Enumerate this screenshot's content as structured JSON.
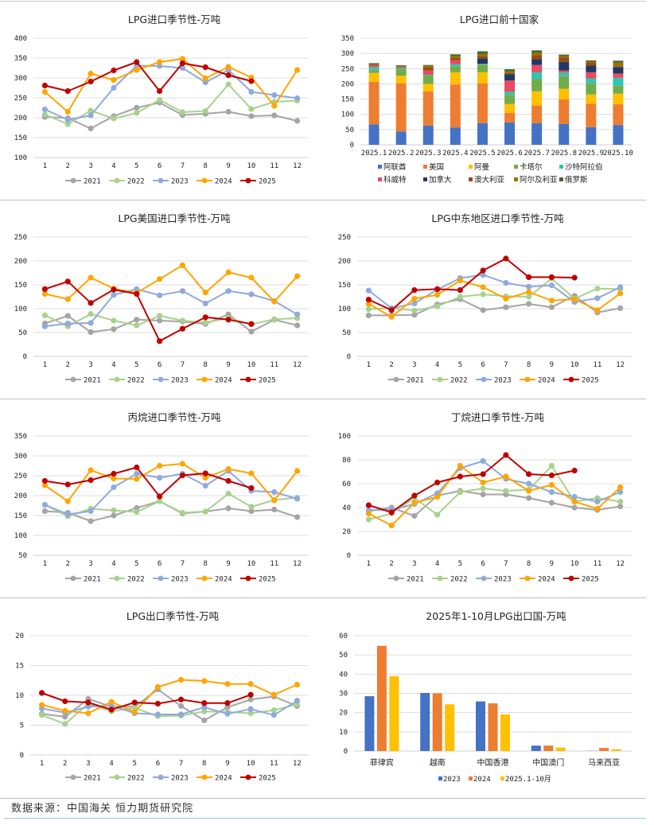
{
  "footer": {
    "source": "数据来源：中国海关 恒力期货研究院"
  },
  "colors": {
    "2021": "#a5a5a5",
    "2022": "#a9d18e",
    "2023": "#8faadc",
    "2024": "#ffa500",
    "2025": "#c00000"
  },
  "chart_data": [
    {
      "id": "lpg-import-seasonal",
      "type": "line",
      "title": "LPG进口季节性-万吨",
      "categories": [
        "1",
        "2",
        "3",
        "4",
        "5",
        "6",
        "7",
        "8",
        "9",
        "10",
        "11",
        "12"
      ],
      "ylim": [
        100,
        400
      ],
      "yticks": [
        100,
        150,
        200,
        250,
        300,
        350,
        400
      ],
      "legend": "bottom",
      "series": [
        {
          "name": "2021",
          "values": [
            202,
            199,
            173,
            204,
            225,
            238,
            207,
            210,
            215,
            204,
            206,
            192
          ]
        },
        {
          "name": "2022",
          "values": [
            208,
            184,
            218,
            198,
            212,
            245,
            214,
            217,
            284,
            222,
            240,
            243
          ]
        },
        {
          "name": "2023",
          "values": [
            221,
            195,
            206,
            275,
            331,
            330,
            325,
            289,
            320,
            265,
            257,
            249
          ]
        },
        {
          "name": "2024",
          "values": [
            265,
            215,
            311,
            295,
            320,
            340,
            348,
            299,
            328,
            301,
            230,
            320
          ]
        },
        {
          "name": "2025",
          "values": [
            281,
            267,
            291,
            319,
            340,
            267,
            337,
            327,
            307,
            292,
            null,
            null
          ]
        }
      ]
    },
    {
      "id": "lpg-import-top10",
      "type": "bar",
      "stacked": true,
      "title": "LPG进口前十国家",
      "categories": [
        "2025.1",
        "2025.2",
        "2025.3",
        "2025.4",
        "2025.5",
        "2025.6",
        "2025.7",
        "2025.8",
        "2025.9",
        "2025.10"
      ],
      "ylim": [
        0,
        350
      ],
      "yticks": [
        0,
        50,
        100,
        150,
        200,
        250,
        300,
        350
      ],
      "legend": "bottom",
      "series": [
        {
          "name": "阿联酋",
          "color": "#4472c4",
          "values": [
            67,
            44,
            63,
            57,
            71,
            73,
            71,
            68,
            58,
            65
          ]
        },
        {
          "name": "美国",
          "color": "#ed7d31",
          "values": [
            140,
            158,
            112,
            141,
            131,
            32,
            58,
            81,
            77,
            68
          ]
        },
        {
          "name": "阿曼",
          "color": "#ffc000",
          "values": [
            29,
            25,
            25,
            40,
            36,
            29,
            47,
            35,
            30,
            35
          ]
        },
        {
          "name": "卡塔尔",
          "color": "#70ad47",
          "values": [
            10,
            22,
            27,
            20,
            25,
            30,
            41,
            41,
            37,
            26
          ]
        },
        {
          "name": "沙特阿拉伯",
          "color": "#2ec4b6",
          "values": [
            9,
            3,
            3,
            7,
            2,
            10,
            21,
            12,
            16,
            26
          ]
        },
        {
          "name": "科威特",
          "color": "#e84a5f",
          "values": [
            5,
            3,
            14,
            13,
            1,
            37,
            24,
            7,
            20,
            14
          ]
        },
        {
          "name": "加拿大",
          "color": "#203864",
          "values": [
            0,
            0,
            0,
            0,
            18,
            21,
            19,
            28,
            22,
            21
          ]
        },
        {
          "name": "澳大利亚",
          "color": "#9e480e",
          "values": [
            3,
            2,
            11,
            7,
            7,
            4,
            13,
            15,
            9,
            3
          ]
        },
        {
          "name": "阿尔及利亚",
          "color": "#997300",
          "values": [
            2,
            1,
            4,
            6,
            7,
            5,
            8,
            4,
            4,
            12
          ]
        },
        {
          "name": "俄罗斯",
          "color": "#43682b",
          "values": [
            3,
            3,
            3,
            6,
            9,
            7,
            8,
            5,
            4,
            6
          ]
        }
      ]
    },
    {
      "id": "lpg-us-import-seasonal",
      "type": "line",
      "title": "LPG美国进口季节性-万吨",
      "categories": [
        "1",
        "2",
        "3",
        "4",
        "5",
        "6",
        "7",
        "8",
        "9",
        "10",
        "11",
        "12"
      ],
      "ylim": [
        0,
        250
      ],
      "yticks": [
        0,
        50,
        100,
        150,
        200,
        250
      ],
      "legend": "bottom",
      "series": [
        {
          "name": "2021",
          "values": [
            69,
            85,
            51,
            57,
            77,
            75,
            73,
            68,
            88,
            52,
            77,
            65
          ]
        },
        {
          "name": "2022",
          "values": [
            86,
            63,
            89,
            75,
            65,
            85,
            75,
            71,
            80,
            67,
            78,
            80
          ]
        },
        {
          "name": "2023",
          "values": [
            63,
            69,
            70,
            129,
            141,
            128,
            137,
            111,
            137,
            130,
            116,
            88
          ]
        },
        {
          "name": "2024",
          "values": [
            131,
            120,
            165,
            142,
            133,
            162,
            191,
            134,
            176,
            165,
            115,
            168
          ]
        },
        {
          "name": "2025",
          "values": [
            141,
            157,
            112,
            140,
            131,
            32,
            58,
            82,
            77,
            68,
            null,
            null
          ]
        }
      ]
    },
    {
      "id": "lpg-middle-east-import-seasonal",
      "type": "line",
      "title": "LPG中东地区进口季节性-万吨",
      "categories": [
        "1",
        "2",
        "3",
        "4",
        "5",
        "6",
        "7",
        "8",
        "9",
        "10",
        "11",
        "12"
      ],
      "ylim": [
        0,
        250
      ],
      "yticks": [
        0,
        50,
        100,
        150,
        200,
        250
      ],
      "legend": "bottom",
      "series": [
        {
          "name": "2021",
          "values": [
            86,
            86,
            87,
            109,
            120,
            97,
            103,
            110,
            103,
            127,
            92,
            101
          ]
        },
        {
          "name": "2022",
          "values": [
            99,
            101,
            96,
            105,
            125,
            130,
            126,
            125,
            163,
            121,
            142,
            141
          ]
        },
        {
          "name": "2023",
          "values": [
            138,
            101,
            111,
            140,
            164,
            171,
            154,
            146,
            149,
            114,
            122,
            145
          ]
        },
        {
          "name": "2024",
          "values": [
            110,
            83,
            121,
            129,
            159,
            145,
            121,
            135,
            117,
            120,
            97,
            132
          ]
        },
        {
          "name": "2025",
          "values": [
            119,
            97,
            139,
            141,
            139,
            180,
            205,
            166,
            166,
            165,
            null,
            null
          ]
        }
      ]
    },
    {
      "id": "propane-import-seasonal",
      "type": "line",
      "title": "丙烷进口季节性-万吨",
      "categories": [
        "1",
        "2",
        "3",
        "4",
        "5",
        "6",
        "7",
        "8",
        "9",
        "10",
        "11",
        "12"
      ],
      "ylim": [
        50,
        350
      ],
      "yticks": [
        50,
        100,
        150,
        200,
        250,
        300,
        350
      ],
      "legend": "bottom",
      "series": [
        {
          "name": "2021",
          "values": [
            161,
            157,
            136,
            150,
            169,
            186,
            155,
            160,
            168,
            161,
            165,
            146
          ]
        },
        {
          "name": "2022",
          "values": [
            177,
            148,
            167,
            163,
            159,
            186,
            157,
            160,
            205,
            172,
            189,
            195
          ]
        },
        {
          "name": "2023",
          "values": [
            177,
            153,
            161,
            221,
            255,
            245,
            255,
            225,
            262,
            212,
            209,
            192
          ]
        },
        {
          "name": "2024",
          "values": [
            226,
            186,
            264,
            243,
            242,
            275,
            280,
            245,
            267,
            256,
            188,
            262
          ]
        },
        {
          "name": "2025",
          "values": [
            237,
            228,
            239,
            255,
            271,
            198,
            251,
            256,
            237,
            219,
            null,
            null
          ]
        }
      ]
    },
    {
      "id": "butane-import-seasonal",
      "type": "line",
      "title": "丁烷进口季节性-万吨",
      "categories": [
        "1",
        "2",
        "3",
        "4",
        "5",
        "6",
        "7",
        "8",
        "9",
        "10",
        "11",
        "12"
      ],
      "ylim": [
        0,
        100
      ],
      "yticks": [
        0,
        20,
        40,
        60,
        80,
        100
      ],
      "legend": "bottom",
      "series": [
        {
          "name": "2021",
          "values": [
            37,
            40,
            33,
            50,
            54,
            51,
            51,
            48,
            44,
            40,
            38,
            41
          ]
        },
        {
          "name": "2022",
          "values": [
            30,
            35,
            48,
            34,
            53,
            56,
            54,
            55,
            75,
            45,
            48,
            45
          ]
        },
        {
          "name": "2023",
          "values": [
            38,
            38,
            43,
            52,
            73,
            79,
            64,
            60,
            53,
            49,
            45,
            53
          ]
        },
        {
          "name": "2024",
          "values": [
            35,
            25,
            44,
            49,
            75,
            61,
            66,
            54,
            59,
            45,
            39,
            57
          ]
        },
        {
          "name": "2025",
          "values": [
            42,
            36,
            50,
            61,
            66,
            68,
            84,
            68,
            67,
            71,
            null,
            null
          ]
        }
      ]
    },
    {
      "id": "lpg-export-seasonal",
      "type": "line",
      "title": "LPG出口季节性-万吨",
      "categories": [
        "1",
        "2",
        "3",
        "4",
        "5",
        "6",
        "7",
        "8",
        "9",
        "10",
        "11",
        "12"
      ],
      "ylim": [
        0,
        20
      ],
      "yticks": [
        0,
        5,
        10,
        15,
        20
      ],
      "legend": "bottom",
      "series": [
        {
          "name": "2021",
          "values": [
            6.9,
            6.4,
            9.4,
            8.1,
            8.1,
            11.0,
            8.2,
            5.8,
            8.0,
            9.3,
            9.8,
            8.2
          ]
        },
        {
          "name": "2022",
          "values": [
            6.7,
            5.2,
            8.6,
            7.3,
            7.9,
            6.5,
            6.6,
            7.3,
            7.2,
            7.0,
            7.5,
            8.5
          ]
        },
        {
          "name": "2023",
          "values": [
            7.8,
            7.1,
            8.1,
            8.3,
            7.0,
            6.8,
            6.8,
            8.0,
            6.9,
            7.7,
            6.7,
            9.1
          ]
        },
        {
          "name": "2024",
          "values": [
            8.4,
            7.4,
            7.0,
            8.9,
            7.2,
            11.4,
            12.6,
            12.4,
            11.9,
            11.9,
            10.1,
            11.8
          ]
        },
        {
          "name": "2025",
          "values": [
            10.4,
            9.0,
            8.8,
            7.6,
            8.8,
            8.6,
            9.3,
            8.7,
            8.7,
            10.1,
            null,
            null
          ]
        }
      ]
    },
    {
      "id": "lpg-export-destinations",
      "type": "bar",
      "title": "2025年1-10月LPG出口国-万吨",
      "categories": [
        "菲律宾",
        "越南",
        "中国香港",
        "中国澳门",
        "马来西亚"
      ],
      "ylim": [
        0,
        60
      ],
      "yticks": [
        0,
        10,
        20,
        30,
        40,
        50,
        60
      ],
      "legend": "bottom",
      "series": [
        {
          "name": "2023",
          "color": "#4472c4",
          "values": [
            28.5,
            30.2,
            25.8,
            2.8,
            0.1
          ]
        },
        {
          "name": "2024",
          "color": "#ed7d31",
          "values": [
            54.7,
            30.0,
            24.8,
            2.8,
            1.6
          ]
        },
        {
          "name": "2025.1-10月",
          "color": "#ffc000",
          "values": [
            38.9,
            24.3,
            19.0,
            1.8,
            0.9
          ]
        }
      ]
    }
  ]
}
